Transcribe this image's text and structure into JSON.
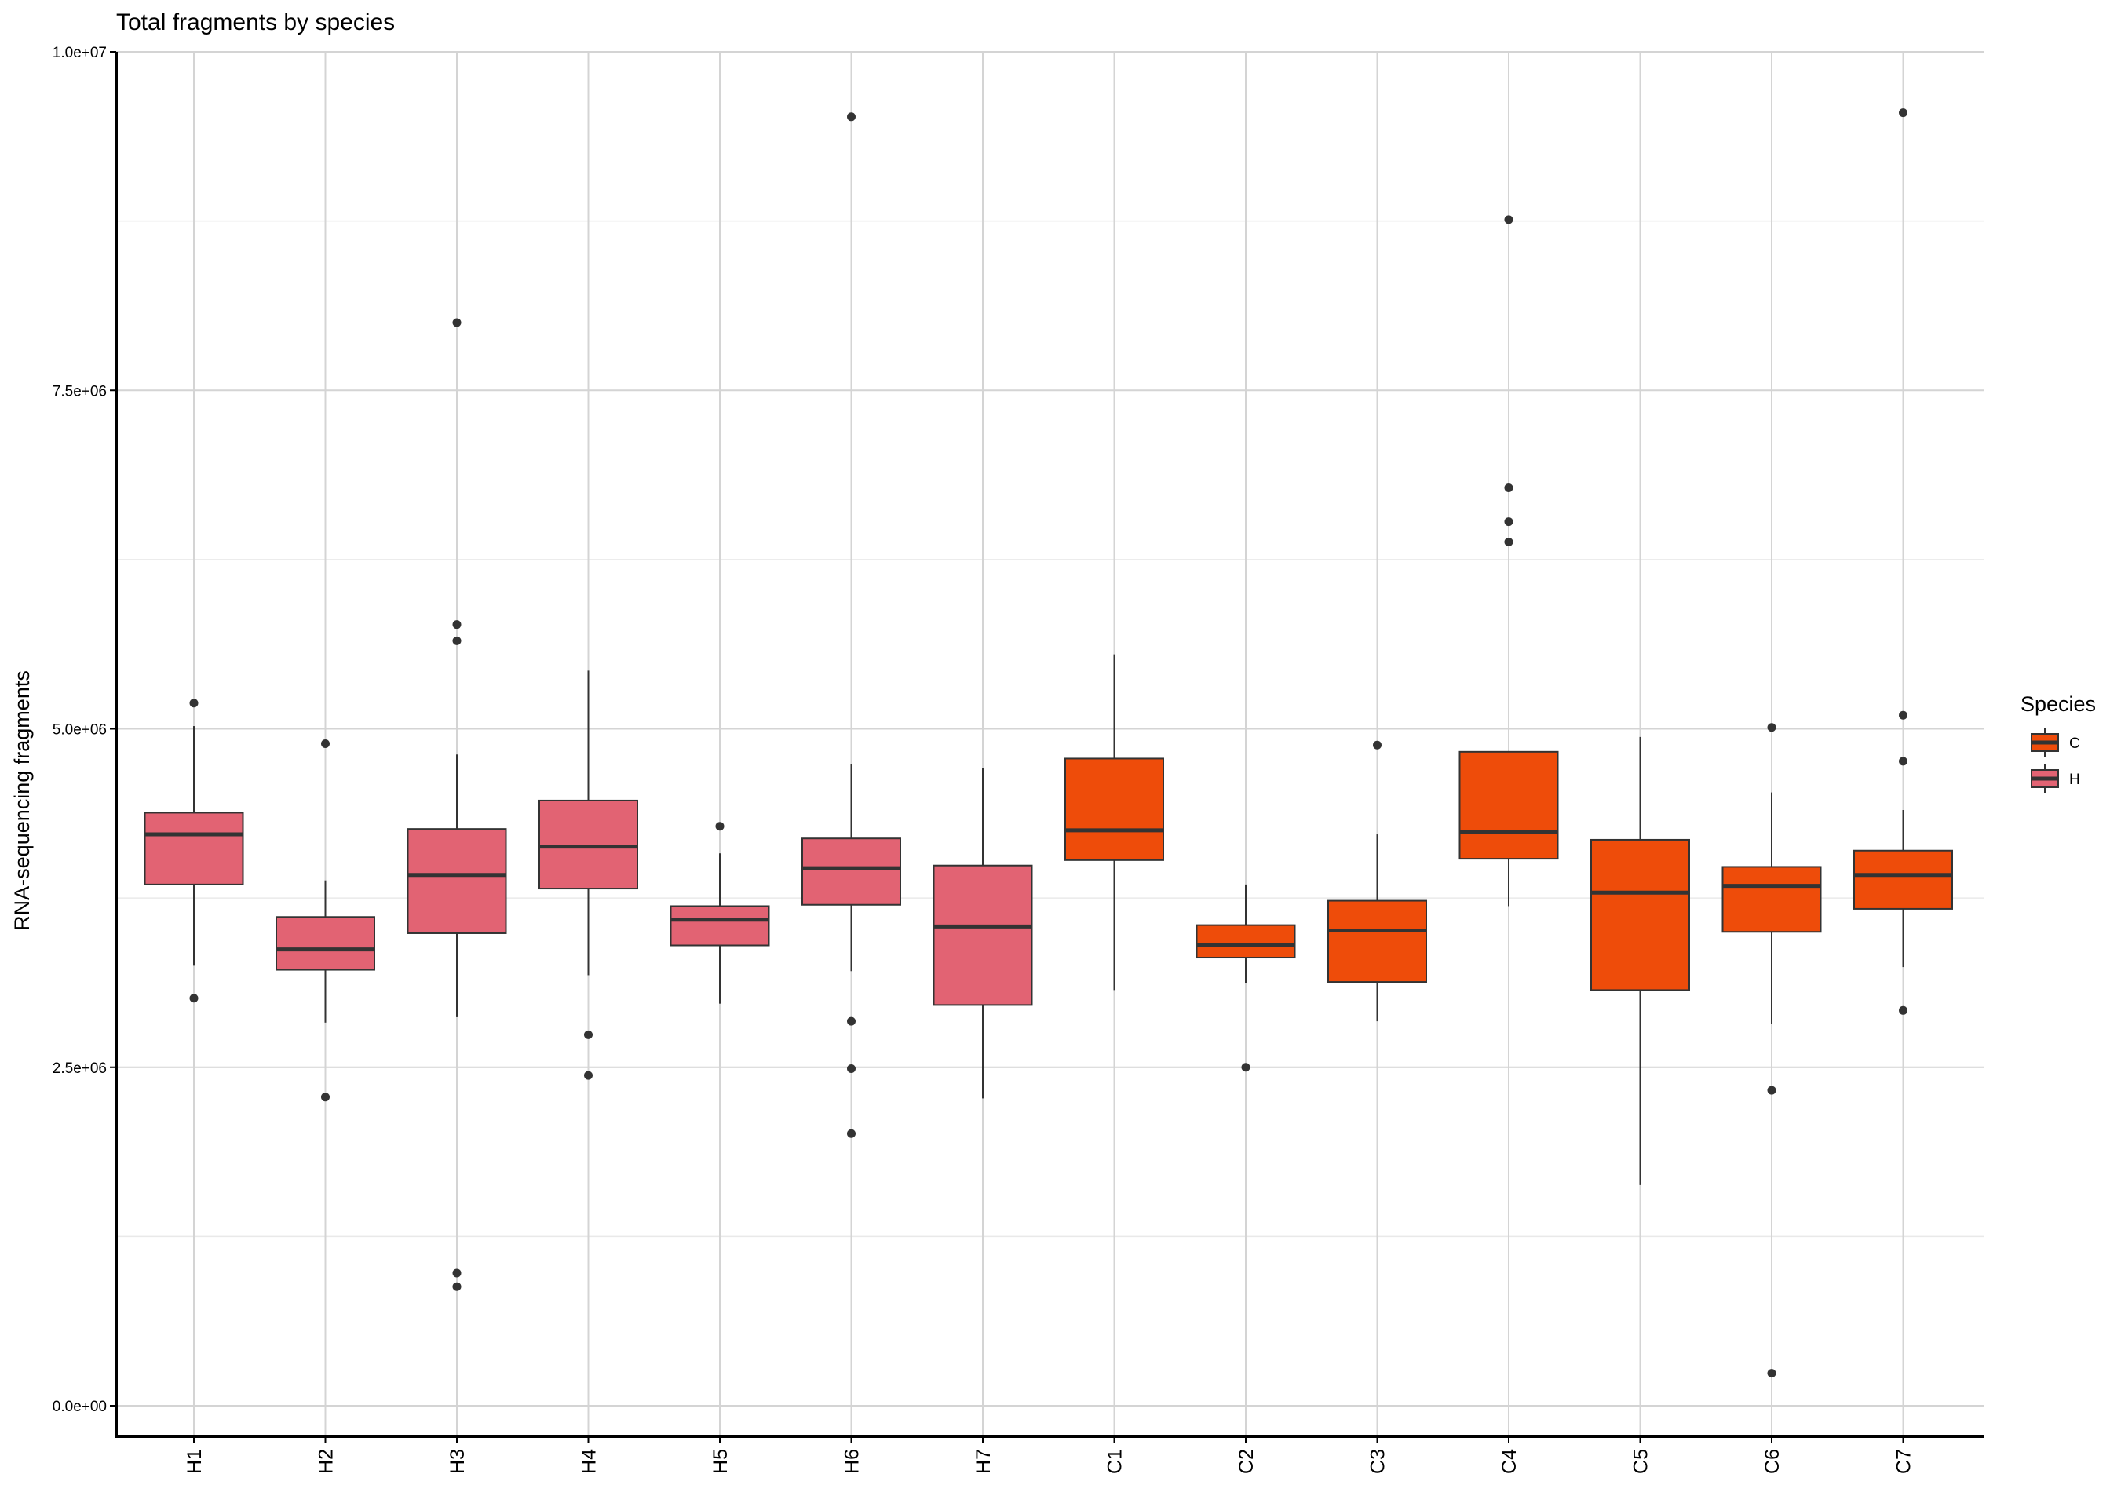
{
  "chart_data": {
    "type": "boxplot",
    "title": "Total fragments by species",
    "xlabel": "",
    "ylabel": "RNA-sequencing fragments",
    "ylim": [
      -250000,
      10000000
    ],
    "y_ticks": [
      0,
      2500000,
      5000000,
      7500000,
      10000000
    ],
    "y_tick_labels": [
      "0.0e+00",
      "2.5e+06",
      "5.0e+06",
      "7.5e+06",
      "1.0e+07"
    ],
    "y_minor_ticks": [
      1250000,
      3750000,
      6250000,
      8750000
    ],
    "grid": true,
    "legend": {
      "title": "Species",
      "placement": "right",
      "entries": [
        {
          "label": "C",
          "color": "#ee4c0a"
        },
        {
          "label": "H",
          "color": "#e26373"
        }
      ]
    },
    "categories": [
      "H1",
      "H2",
      "H3",
      "H4",
      "H5",
      "H6",
      "H7",
      "C1",
      "C2",
      "C3",
      "C4",
      "C5",
      "C6",
      "C7"
    ],
    "boxes": [
      {
        "label": "H1",
        "group": "H",
        "whisker_low": 3250000,
        "q1": 3850000,
        "median": 4220000,
        "q3": 4380000,
        "whisker_high": 5020000,
        "outliers": [
          5190000,
          3010000
        ]
      },
      {
        "label": "H2",
        "group": "H",
        "whisker_low": 2830000,
        "q1": 3220000,
        "median": 3370000,
        "q3": 3610000,
        "whisker_high": 3880000,
        "outliers": [
          4890000,
          2280000
        ]
      },
      {
        "label": "H3",
        "group": "H",
        "whisker_low": 2870000,
        "q1": 3490000,
        "median": 3920000,
        "q3": 4260000,
        "whisker_high": 4810000,
        "outliers": [
          8000000,
          5770000,
          5650000,
          980000,
          880000
        ]
      },
      {
        "label": "H4",
        "group": "H",
        "whisker_low": 3180000,
        "q1": 3820000,
        "median": 4130000,
        "q3": 4470000,
        "whisker_high": 5430000,
        "outliers": [
          2740000,
          2440000
        ]
      },
      {
        "label": "H5",
        "group": "H",
        "whisker_low": 2970000,
        "q1": 3400000,
        "median": 3590000,
        "q3": 3690000,
        "whisker_high": 4080000,
        "outliers": [
          4280000
        ]
      },
      {
        "label": "H6",
        "group": "H",
        "whisker_low": 3210000,
        "q1": 3700000,
        "median": 3970000,
        "q3": 4190000,
        "whisker_high": 4740000,
        "outliers": [
          9520000,
          2840000,
          2490000,
          2010000
        ]
      },
      {
        "label": "H7",
        "group": "H",
        "whisker_low": 2270000,
        "q1": 2960000,
        "median": 3540000,
        "q3": 3990000,
        "whisker_high": 4710000,
        "outliers": []
      },
      {
        "label": "C1",
        "group": "C",
        "whisker_low": 3070000,
        "q1": 4030000,
        "median": 4250000,
        "q3": 4780000,
        "whisker_high": 5550000,
        "outliers": []
      },
      {
        "label": "C2",
        "group": "C",
        "whisker_low": 3120000,
        "q1": 3310000,
        "median": 3400000,
        "q3": 3550000,
        "whisker_high": 3850000,
        "outliers": [
          2500000
        ]
      },
      {
        "label": "C3",
        "group": "C",
        "whisker_low": 2840000,
        "q1": 3130000,
        "median": 3510000,
        "q3": 3730000,
        "whisker_high": 4220000,
        "outliers": [
          4880000
        ]
      },
      {
        "label": "C4",
        "group": "C",
        "whisker_low": 3690000,
        "q1": 4040000,
        "median": 4240000,
        "q3": 4830000,
        "whisker_high": 4830000,
        "outliers": [
          8760000,
          6780000,
          6530000,
          6380000
        ]
      },
      {
        "label": "C5",
        "group": "C",
        "whisker_low": 1630000,
        "q1": 3070000,
        "median": 3790000,
        "q3": 4180000,
        "whisker_high": 4940000,
        "outliers": []
      },
      {
        "label": "C6",
        "group": "C",
        "whisker_low": 2820000,
        "q1": 3500000,
        "median": 3840000,
        "q3": 3980000,
        "whisker_high": 4530000,
        "outliers": [
          5010000,
          2330000,
          240000
        ]
      },
      {
        "label": "C7",
        "group": "C",
        "whisker_low": 3240000,
        "q1": 3670000,
        "median": 3920000,
        "q3": 4100000,
        "whisker_high": 4400000,
        "outliers": [
          9550000,
          5100000,
          4760000,
          2920000
        ]
      }
    ]
  },
  "colors": {
    "C": "#ee4c0a",
    "H": "#e26373",
    "line": "#333333",
    "grid_major": "#d4d4d4",
    "grid_minor": "#e9e9e9"
  }
}
